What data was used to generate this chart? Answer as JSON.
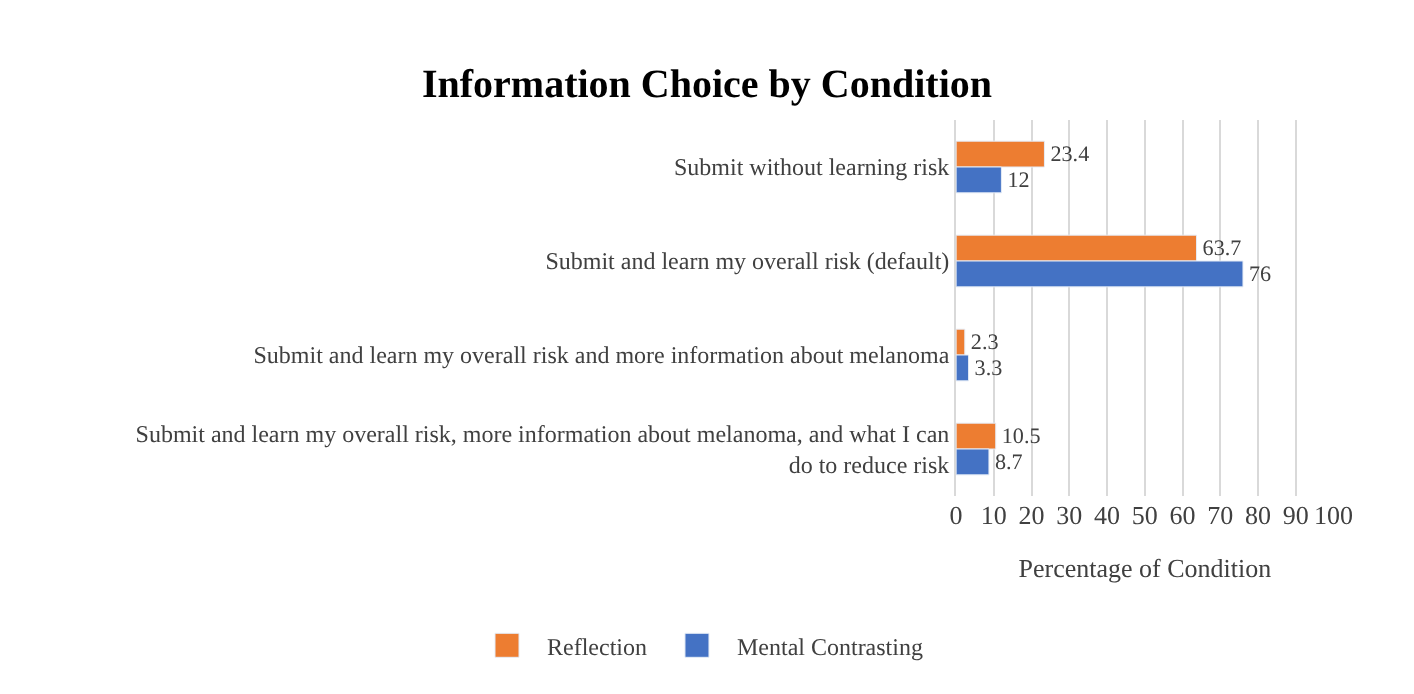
{
  "chart_data": {
    "type": "bar",
    "orientation": "horizontal",
    "title": "Information Choice by Condition",
    "xlabel": "Percentage of Condition",
    "categories": [
      "Submit without learning risk",
      "Submit and learn my overall risk (default)",
      "Submit and learn my overall risk and more information about melanoma",
      "Submit and learn my overall risk, more information about melanoma, and what I can do to reduce risk"
    ],
    "series": [
      {
        "name": "Reflection",
        "color": "#ed7d31",
        "values": [
          23.4,
          63.7,
          2.3,
          10.5
        ]
      },
      {
        "name": "Mental Contrasting",
        "color": "#4472c4",
        "values": [
          12,
          76,
          3.3,
          8.7
        ]
      }
    ],
    "xlim": [
      0,
      100
    ],
    "xticks": [
      0,
      10,
      20,
      30,
      40,
      50,
      60,
      70,
      80,
      90,
      100
    ],
    "grid": "x",
    "legend": "bottom",
    "data_labels": true
  }
}
